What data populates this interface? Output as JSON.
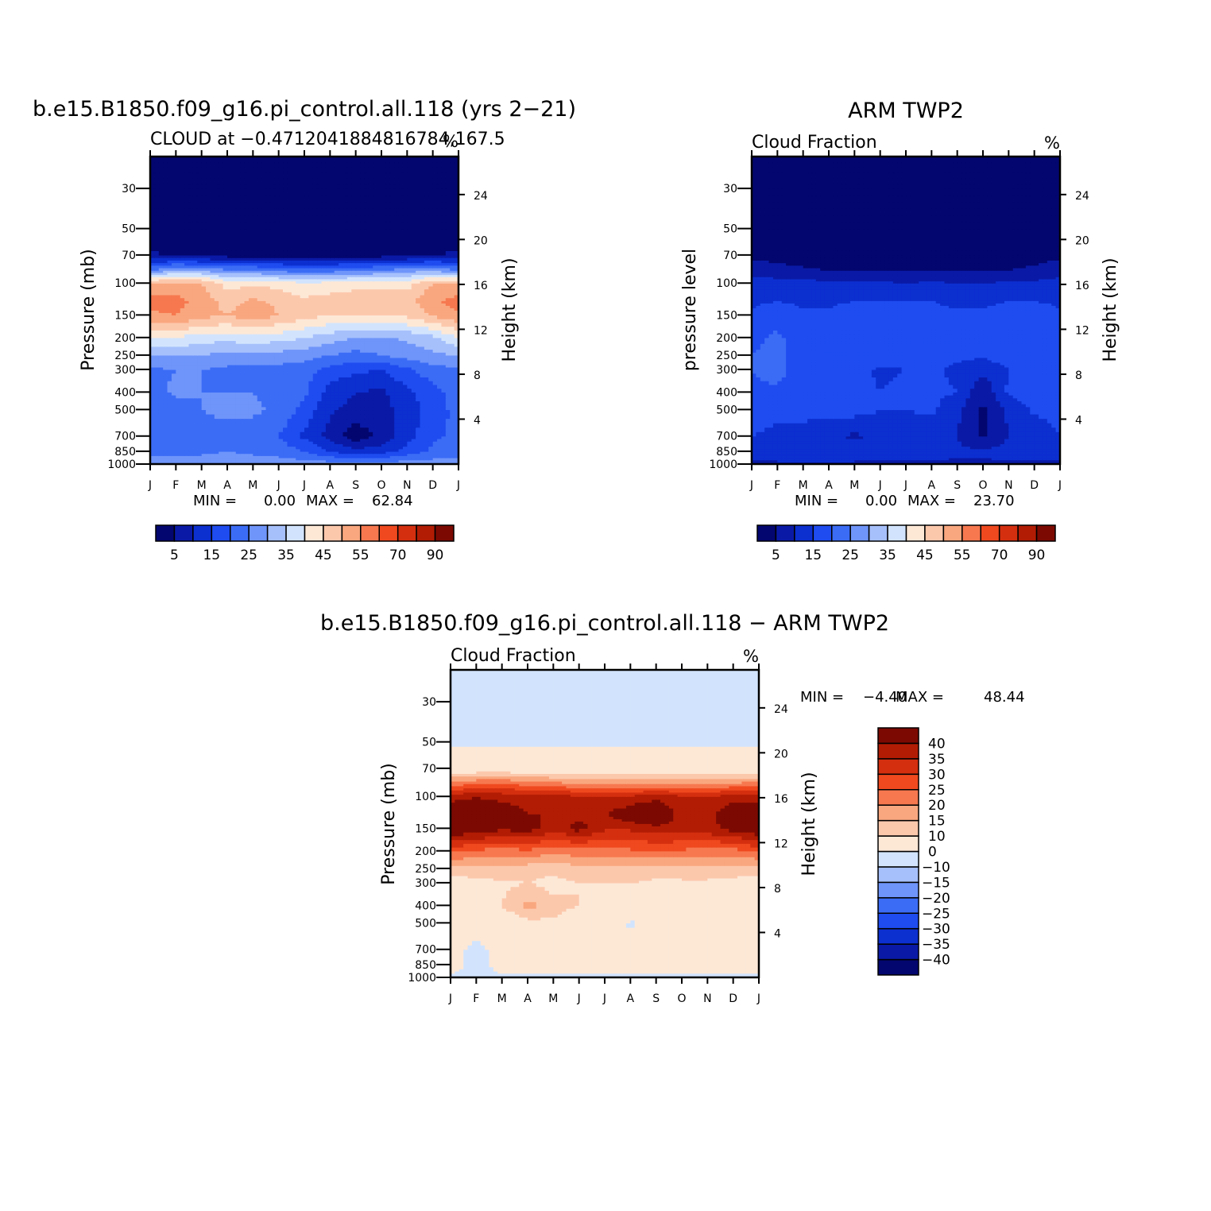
{
  "figure": {
    "panels": [
      {
        "title": "b.e15.B1850.f09_g16.pi_control.all.118 (yrs 2-21)",
        "left_title": "CLOUD at -0.4712041884816784,167.5",
        "right_title": "%",
        "ylabel": "Pressure (mb)",
        "ylabel_right": "Height (km)",
        "stats": {
          "min_label": "MIN =",
          "min": "0.00",
          "max_label": "MAX =",
          "max": "62.84"
        }
      },
      {
        "title": "ARM TWP2",
        "left_title": "Cloud Fraction",
        "right_title": "%",
        "ylabel": "pressure level",
        "ylabel_right": "Height (km)",
        "stats": {
          "min_label": "MIN =",
          "min": "0.00",
          "max_label": "MAX =",
          "max": "23.70"
        }
      },
      {
        "title": "b.e15.B1850.f09_g16.pi_control.all.118 - ARM TWP2",
        "left_title": "Cloud Fraction",
        "right_title": "%",
        "ylabel": "Pressure (mb)",
        "ylabel_right": "Height (km)",
        "stats": {
          "min_label": "MIN =",
          "min": "-4.40",
          "max_label": "MAX =",
          "max": "48.44"
        }
      }
    ]
  },
  "chart_data": [
    {
      "type": "heatmap",
      "title": "b.e15.B1850.f09_g16.pi_control.all.118 (yrs 2-21)",
      "subtitle": "CLOUD at -0.4712041884816784,167.5",
      "units": "%",
      "x": [
        "J",
        "F",
        "M",
        "A",
        "M",
        "J",
        "J",
        "A",
        "S",
        "O",
        "N",
        "D",
        "J"
      ],
      "y_pressure_ticks": [
        30,
        50,
        70,
        100,
        150,
        200,
        250,
        300,
        400,
        500,
        700,
        850,
        1000
      ],
      "y_height_ticks": [
        24,
        20,
        16,
        12,
        8,
        4
      ],
      "ylabel": "Pressure (mb)",
      "ylabel_right": "Height (km)",
      "xlim": [
        "J",
        "J"
      ],
      "ylim": [
        1000,
        20
      ],
      "min": 0.0,
      "max": 62.84,
      "levels": [
        5,
        10,
        15,
        20,
        25,
        30,
        35,
        40,
        45,
        50,
        55,
        60,
        70,
        80,
        90
      ],
      "colors": [
        "#03066e",
        "#0a1aa6",
        "#0c2fd0",
        "#1e4cf0",
        "#3b6cf6",
        "#6f95fa",
        "#a6c0fc",
        "#d2e4fd",
        "#fde8d6",
        "#fcc8ac",
        "#f9a77f",
        "#f7784f",
        "#f0491f",
        "#d42f0f",
        "#b21c04",
        "#7c0a02"
      ],
      "grid_pressure": [
        1000,
        850,
        700,
        500,
        400,
        300,
        250,
        200,
        150,
        125,
        100,
        85,
        70,
        50,
        30,
        20
      ],
      "grid_values": [
        [
          28,
          28,
          28,
          28,
          28,
          28,
          28,
          28,
          28,
          28,
          28,
          28,
          28
        ],
        [
          23,
          23,
          24,
          25,
          24,
          23,
          20,
          15,
          12,
          13,
          17,
          21,
          23
        ],
        [
          21,
          21,
          22,
          22,
          22,
          20,
          14,
          8,
          2,
          6,
          13,
          19,
          21
        ],
        [
          22,
          22,
          25,
          27,
          26,
          24,
          18,
          11,
          8,
          8,
          12,
          17,
          22
        ],
        [
          23,
          26,
          25,
          25,
          25,
          23,
          21,
          13,
          10,
          9,
          14,
          18,
          23
        ],
        [
          24,
          25,
          25,
          24,
          23,
          23,
          22,
          18,
          16,
          15,
          19,
          23,
          24
        ],
        [
          30,
          30,
          30,
          28,
          28,
          28,
          27,
          25,
          23,
          25,
          27,
          29,
          30
        ],
        [
          40,
          40,
          37,
          37,
          38,
          37,
          35,
          32,
          30,
          29,
          31,
          33,
          40
        ],
        [
          54,
          55,
          52,
          50,
          53,
          50,
          47,
          45,
          45,
          45,
          46,
          51,
          54
        ],
        [
          57,
          57,
          53,
          48,
          51,
          49,
          46,
          47,
          48,
          48,
          48,
          54,
          57
        ],
        [
          51,
          51,
          50,
          43,
          44,
          43,
          41,
          42,
          43,
          43,
          43,
          50,
          51
        ],
        [
          25,
          32,
          30,
          26,
          26,
          24,
          22,
          23,
          25,
          26,
          28,
          30,
          25
        ],
        [
          6,
          4,
          4,
          3,
          3,
          3,
          3,
          3,
          3,
          3,
          4,
          5,
          6
        ],
        [
          0,
          0,
          0,
          0,
          0,
          0,
          0,
          0,
          0,
          0,
          0,
          0,
          0
        ],
        [
          0,
          0,
          0,
          0,
          0,
          0,
          0,
          0,
          0,
          0,
          0,
          0,
          0
        ],
        [
          0,
          0,
          0,
          0,
          0,
          0,
          0,
          0,
          0,
          0,
          0,
          0,
          0
        ]
      ]
    },
    {
      "type": "heatmap",
      "title": "ARM TWP2",
      "subtitle": "Cloud Fraction",
      "units": "%",
      "x": [
        "J",
        "F",
        "M",
        "A",
        "M",
        "J",
        "J",
        "A",
        "S",
        "O",
        "N",
        "D",
        "J"
      ],
      "y_pressure_ticks": [
        30,
        50,
        70,
        100,
        150,
        200,
        250,
        300,
        400,
        500,
        700,
        850,
        1000
      ],
      "y_height_ticks": [
        24,
        20,
        16,
        12,
        8,
        4
      ],
      "ylabel": "pressure level",
      "ylabel_right": "Height (km)",
      "xlim": [
        "J",
        "J"
      ],
      "ylim": [
        1000,
        20
      ],
      "min": 0.0,
      "max": 23.7,
      "levels": [
        5,
        10,
        15,
        20,
        25,
        30,
        35,
        40,
        45,
        50,
        55,
        60,
        70,
        80,
        90
      ],
      "colors": [
        "#03066e",
        "#0a1aa6",
        "#0c2fd0",
        "#1e4cf0",
        "#3b6cf6",
        "#6f95fa",
        "#a6c0fc",
        "#d2e4fd",
        "#fde8d6",
        "#fcc8ac",
        "#f9a77f",
        "#f7784f",
        "#f0491f",
        "#d42f0f",
        "#b21c04",
        "#7c0a02"
      ],
      "grid_pressure": [
        1000,
        850,
        700,
        500,
        400,
        300,
        250,
        200,
        150,
        125,
        100,
        85,
        70,
        50,
        30,
        20
      ],
      "grid_values": [
        [
          9,
          9,
          9,
          9,
          9,
          9,
          9,
          9,
          9,
          9,
          9,
          9,
          9
        ],
        [
          12,
          13,
          14,
          14,
          13,
          12,
          12,
          12,
          11,
          11,
          12,
          13,
          12
        ],
        [
          15,
          14,
          11,
          11,
          9,
          11,
          10,
          11,
          10,
          4,
          10,
          11,
          15
        ],
        [
          17,
          16,
          18,
          17,
          17,
          15,
          15,
          16,
          11,
          4,
          11,
          16,
          17
        ],
        [
          19,
          19,
          16,
          16,
          17,
          15,
          16,
          16,
          15,
          6,
          16,
          17,
          19
        ],
        [
          20,
          22,
          17,
          15,
          17,
          14,
          15,
          16,
          14,
          11,
          15,
          18,
          20
        ],
        [
          20,
          21,
          17,
          17,
          19,
          18,
          17,
          17,
          16,
          16,
          18,
          18,
          20
        ],
        [
          19,
          21,
          17,
          17,
          19,
          20,
          19,
          17,
          16,
          18,
          19,
          19,
          19
        ],
        [
          16,
          18,
          16,
          16,
          18,
          19,
          17,
          16,
          16,
          16,
          17,
          18,
          16
        ],
        [
          14,
          15,
          14,
          14,
          15,
          15,
          15,
          15,
          14,
          14,
          15,
          15,
          14
        ],
        [
          12,
          12,
          12,
          11,
          11,
          11,
          10,
          11,
          10,
          10,
          11,
          11,
          12
        ],
        [
          8,
          7,
          6,
          5,
          5,
          5,
          5,
          5,
          5,
          5,
          5,
          6,
          8
        ],
        [
          4,
          3,
          2,
          2,
          2,
          2,
          2,
          2,
          2,
          2,
          2,
          3,
          4
        ],
        [
          0,
          0,
          0,
          0,
          0,
          0,
          0,
          0,
          0,
          0,
          0,
          0,
          0
        ],
        [
          0,
          0,
          0,
          0,
          0,
          0,
          0,
          0,
          0,
          0,
          0,
          0,
          0
        ],
        [
          0,
          0,
          0,
          0,
          0,
          0,
          0,
          0,
          0,
          0,
          0,
          0,
          0
        ]
      ]
    },
    {
      "type": "heatmap",
      "title": "b.e15.B1850.f09_g16.pi_control.all.118 - ARM TWP2",
      "subtitle": "Cloud Fraction",
      "units": "%",
      "x": [
        "J",
        "F",
        "M",
        "A",
        "M",
        "J",
        "J",
        "A",
        "S",
        "O",
        "N",
        "D",
        "J"
      ],
      "y_pressure_ticks": [
        30,
        50,
        70,
        100,
        150,
        200,
        250,
        300,
        400,
        500,
        700,
        850,
        1000
      ],
      "y_height_ticks": [
        24,
        20,
        16,
        12,
        8,
        4
      ],
      "ylabel": "Pressure (mb)",
      "ylabel_right": "Height (km)",
      "xlim": [
        "J",
        "J"
      ],
      "ylim": [
        1000,
        20
      ],
      "min": -4.4,
      "max": 48.44,
      "levels": [
        -40,
        -35,
        -30,
        -25,
        -20,
        -15,
        -10,
        0,
        10,
        15,
        20,
        25,
        30,
        35,
        40
      ],
      "colors": [
        "#03066e",
        "#0a1aa6",
        "#0c2fd0",
        "#1e4cf0",
        "#3b6cf6",
        "#6f95fa",
        "#a6c0fc",
        "#d2e4fd",
        "#fde8d6",
        "#fcc8ac",
        "#f9a77f",
        "#f7784f",
        "#f0491f",
        "#d42f0f",
        "#b21c04",
        "#7c0a02"
      ],
      "grid_pressure": [
        1000,
        850,
        700,
        500,
        400,
        300,
        250,
        200,
        150,
        125,
        100,
        85,
        70,
        50,
        30,
        20
      ],
      "grid_values": [
        [
          -1,
          -1,
          -1,
          -1,
          -1,
          -1,
          -1,
          -1,
          -1,
          -1,
          -1,
          -1,
          -1
        ],
        [
          2,
          -2,
          2,
          2,
          2,
          2,
          2,
          2,
          2,
          2,
          2,
          2,
          2
        ],
        [
          2,
          -2,
          2,
          3,
          3,
          3,
          2,
          2,
          2,
          2,
          2,
          2,
          2
        ],
        [
          6,
          4,
          4,
          8,
          9,
          6,
          6,
          -1,
          3,
          6,
          4,
          4,
          6
        ],
        [
          7,
          8,
          10,
          17,
          12,
          10,
          7,
          5,
          7,
          6,
          5,
          6,
          7
        ],
        [
          7,
          8,
          9,
          10,
          8,
          10,
          10,
          10,
          9,
          9,
          9,
          8,
          7
        ],
        [
          12,
          14,
          14,
          12,
          12,
          13,
          13,
          13,
          12,
          13,
          13,
          13,
          12
        ],
        [
          26,
          24,
          22,
          24,
          21,
          23,
          23,
          24,
          25,
          24,
          23,
          23,
          26
        ],
        [
          45,
          45,
          41,
          43,
          37,
          42,
          36,
          36,
          38,
          38,
          38,
          42,
          45
        ],
        [
          45,
          45,
          45,
          40,
          40,
          38,
          40,
          44,
          48,
          37,
          38,
          45,
          45
        ],
        [
          38,
          40,
          38,
          37,
          39,
          35,
          35,
          36,
          38,
          36,
          35,
          38,
          38
        ],
        [
          22,
          25,
          26,
          23,
          22,
          20,
          20,
          20,
          20,
          20,
          20,
          21,
          22
        ],
        [
          5,
          5,
          5,
          5,
          5,
          5,
          5,
          5,
          5,
          5,
          5,
          5,
          5
        ],
        [
          -1,
          -1,
          -1,
          -1,
          -1,
          -1,
          -1,
          -1,
          -1,
          -1,
          -1,
          -1,
          -1
        ],
        [
          -1,
          -1,
          -1,
          -1,
          -1,
          -1,
          -1,
          -1,
          -1,
          -1,
          -1,
          -1,
          -1
        ],
        [
          -1,
          -1,
          -1,
          -1,
          -1,
          -1,
          -1,
          -1,
          -1,
          -1,
          -1,
          -1,
          -1
        ]
      ]
    }
  ]
}
